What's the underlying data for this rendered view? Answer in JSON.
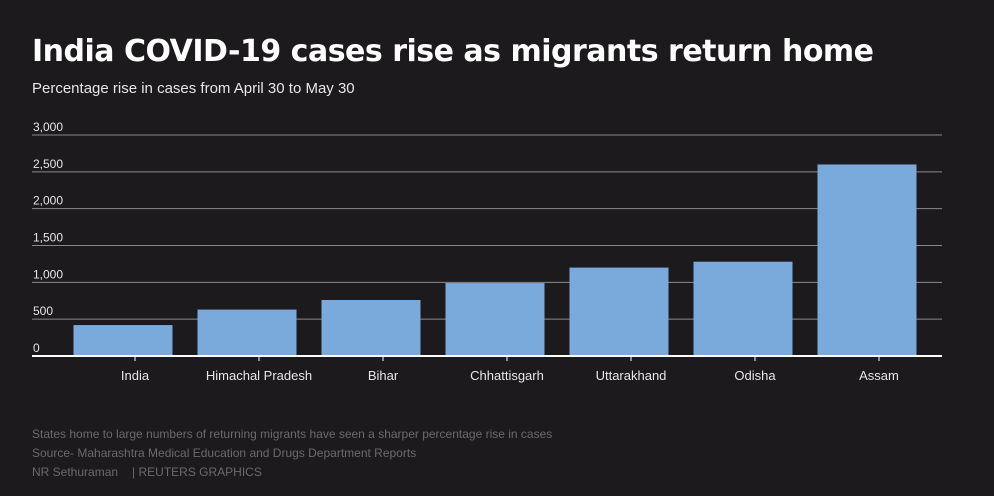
{
  "title": "India COVID-19 cases rise as migrants return home",
  "subtitle": "Percentage rise in cases from April 30 to May 30",
  "colors": {
    "background": "#1c1a1c",
    "bar": "#7aaadb",
    "grid": "#8a8a8a",
    "axis": "#ffffff",
    "text": "#e6e6e6"
  },
  "chart_data": {
    "type": "bar",
    "title": "India COVID-19 cases rise as migrants return home",
    "subtitle": "Percentage rise in cases from April 30 to May 30",
    "xlabel": "",
    "ylabel": "",
    "categories": [
      "India",
      "Himachal Pradesh",
      "Bihar",
      "Chhattisgarh",
      "Uttarakhand",
      "Odisha",
      "Assam"
    ],
    "values": [
      420,
      630,
      760,
      990,
      1200,
      1280,
      2600
    ],
    "ylim": [
      0,
      3000
    ],
    "yticks": [
      0,
      500,
      1000,
      1500,
      2000,
      2500,
      3000
    ],
    "ytick_labels": [
      "0",
      "500",
      "1,000",
      "1,500",
      "2,000",
      "2,500",
      "3,000"
    ],
    "grid": true,
    "legend": "none"
  },
  "footer": {
    "note": "States home to large numbers of returning migrants have seen a sharper percentage rise in cases",
    "source": "Source- Maharashtra Medical Education and Drugs Department Reports",
    "author": "NR Sethuraman",
    "credit": "| REUTERS GRAPHICS"
  }
}
